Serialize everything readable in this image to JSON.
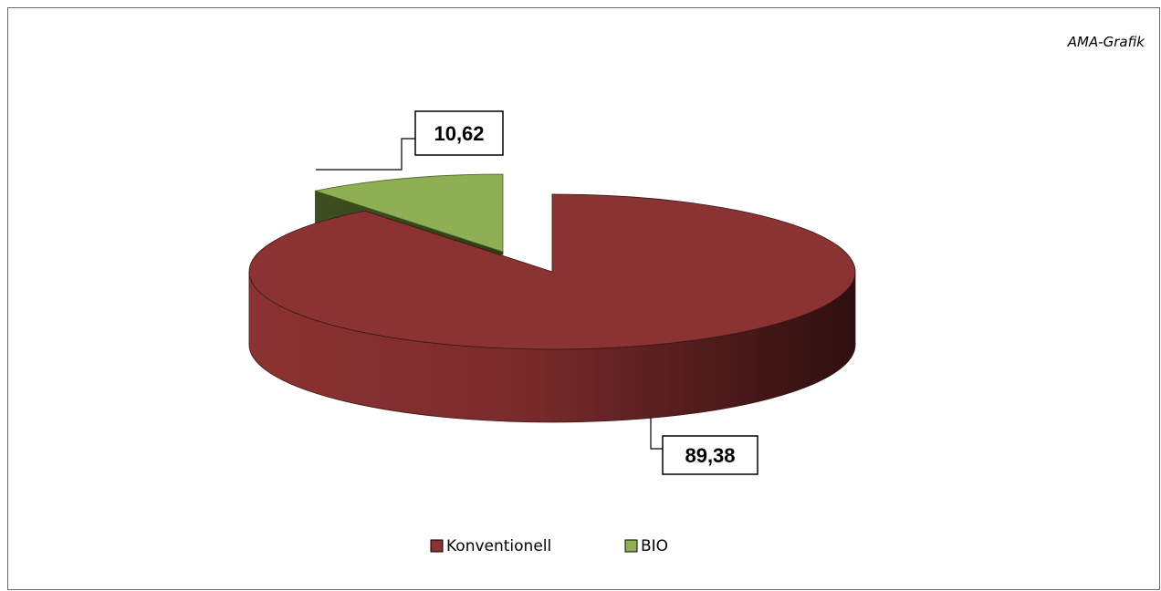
{
  "source_note": "AMA-Grafik",
  "chart_data": {
    "type": "pie",
    "style": "3d-exploded",
    "categories": [
      "Konventionell",
      "BIO"
    ],
    "values": [
      89.38,
      10.62
    ],
    "data_labels": [
      "89,38",
      "10,62"
    ],
    "colors": [
      "#8B3232",
      "#8FAF55"
    ],
    "legend": {
      "placement": "bottom",
      "entries": [
        "Konventionell",
        "BIO"
      ]
    }
  }
}
